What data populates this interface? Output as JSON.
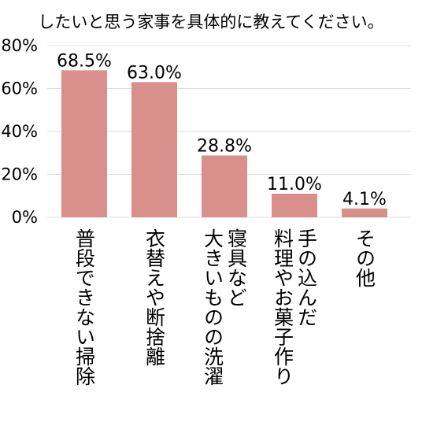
{
  "chart_data": {
    "type": "bar",
    "title": "したいと思う家事を具体的に教えてください。",
    "categories": [
      [
        "普段できない掃除"
      ],
      [
        "衣替えや断捨離"
      ],
      [
        "寝具など",
        "大きいものの洗濯"
      ],
      [
        "手の込んだ",
        "料理やお菓子作り"
      ],
      [
        "その他"
      ]
    ],
    "values": [
      68.5,
      63.0,
      28.8,
      11.0,
      4.1
    ],
    "data_labels": [
      "68.5%",
      "63.0%",
      "28.8%",
      "11.0%",
      "4.1%"
    ],
    "y_ticks": [
      "0%",
      "20%",
      "40%",
      "60%",
      "80%"
    ],
    "ylim": [
      0,
      80
    ],
    "grid": true,
    "bar_color": "#d98f8b",
    "grid_color": "#dcdcdc"
  }
}
